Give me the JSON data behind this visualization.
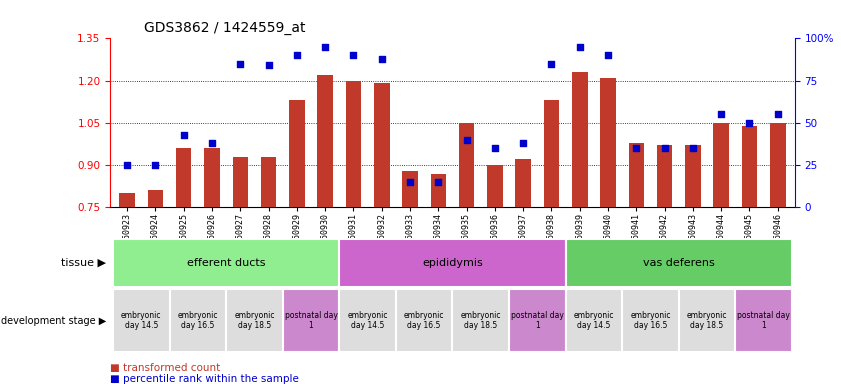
{
  "title": "GDS3862 / 1424559_at",
  "samples": [
    "GSM560923",
    "GSM560924",
    "GSM560925",
    "GSM560926",
    "GSM560927",
    "GSM560928",
    "GSM560929",
    "GSM560930",
    "GSM560931",
    "GSM560932",
    "GSM560933",
    "GSM560934",
    "GSM560935",
    "GSM560936",
    "GSM560937",
    "GSM560938",
    "GSM560939",
    "GSM560940",
    "GSM560941",
    "GSM560942",
    "GSM560943",
    "GSM560944",
    "GSM560945",
    "GSM560946"
  ],
  "transformed_count": [
    0.8,
    0.81,
    0.96,
    0.96,
    0.93,
    0.93,
    1.13,
    1.22,
    1.2,
    1.19,
    0.88,
    0.87,
    1.05,
    0.9,
    0.92,
    1.13,
    1.23,
    1.21,
    0.98,
    0.97,
    0.97,
    1.05,
    1.04,
    1.05
  ],
  "percentile_rank": [
    25,
    25,
    43,
    38,
    85,
    84,
    90,
    95,
    90,
    88,
    15,
    15,
    40,
    35,
    38,
    85,
    95,
    90,
    35,
    35,
    35,
    55,
    50,
    55
  ],
  "ylim_left": [
    0.75,
    1.35
  ],
  "ylim_right": [
    0,
    100
  ],
  "yticks_left": [
    0.75,
    0.9,
    1.05,
    1.2,
    1.35
  ],
  "yticks_right": [
    0,
    25,
    50,
    75,
    100
  ],
  "bar_color": "#c0392b",
  "dot_color": "#0000cc",
  "tissue_groups": [
    {
      "label": "efferent ducts",
      "start": 0,
      "end": 7,
      "color": "#90ee90"
    },
    {
      "label": "epididymis",
      "start": 8,
      "end": 15,
      "color": "#cc66cc"
    },
    {
      "label": "vas deferens",
      "start": 16,
      "end": 23,
      "color": "#66cc66"
    }
  ],
  "dev_stage_groups": [
    {
      "label": "embryonic\nday 14.5",
      "start": 0,
      "end": 1,
      "color": "#dddddd"
    },
    {
      "label": "embryonic\nday 16.5",
      "start": 2,
      "end": 3,
      "color": "#dddddd"
    },
    {
      "label": "embryonic\nday 18.5",
      "start": 4,
      "end": 5,
      "color": "#dddddd"
    },
    {
      "label": "postnatal day\n1",
      "start": 6,
      "end": 7,
      "color": "#cc88cc"
    },
    {
      "label": "embryonic\nday 14.5",
      "start": 8,
      "end": 9,
      "color": "#dddddd"
    },
    {
      "label": "embryonic\nday 16.5",
      "start": 10,
      "end": 11,
      "color": "#dddddd"
    },
    {
      "label": "embryonic\nday 18.5",
      "start": 12,
      "end": 13,
      "color": "#dddddd"
    },
    {
      "label": "postnatal day\n1",
      "start": 14,
      "end": 15,
      "color": "#cc88cc"
    },
    {
      "label": "embryonic\nday 14.5",
      "start": 16,
      "end": 17,
      "color": "#dddddd"
    },
    {
      "label": "embryonic\nday 16.5",
      "start": 18,
      "end": 19,
      "color": "#dddddd"
    },
    {
      "label": "embryonic\nday 18.5",
      "start": 20,
      "end": 21,
      "color": "#dddddd"
    },
    {
      "label": "postnatal day\n1",
      "start": 22,
      "end": 23,
      "color": "#cc88cc"
    }
  ],
  "legend_items": [
    {
      "label": "transformed count",
      "color": "#c0392b"
    },
    {
      "label": "percentile rank within the sample",
      "color": "#0000cc"
    }
  ],
  "background_color": "#ffffff"
}
